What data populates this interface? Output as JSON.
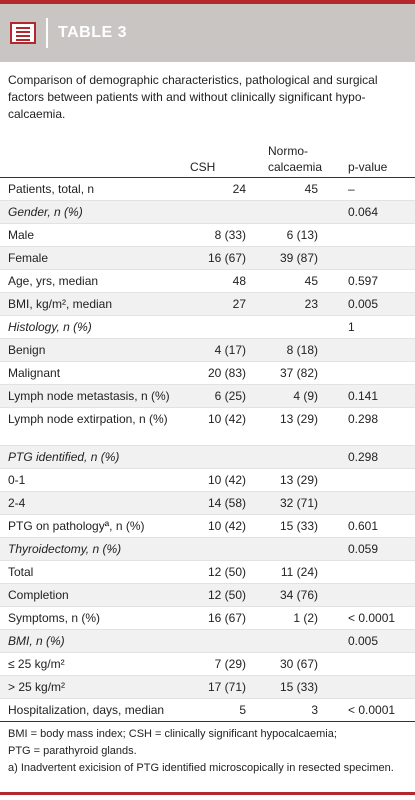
{
  "table_label": "TABLE 3",
  "caption": "Comparison of demographic characteristics, pathological and surgical factors between patients with and without clinically significant hypo­calcaemia.",
  "columns": {
    "label": "",
    "csh": "CSH",
    "normo": "Normo-calcaemia",
    "pvalue": "p-value"
  },
  "rows": [
    {
      "label": "Patients, total, n",
      "csh": "24",
      "normo": "45",
      "p": "–"
    },
    {
      "label": "Gender, n (%)",
      "csh": "",
      "normo": "",
      "p": "0.064",
      "category": true
    },
    {
      "label": "Male",
      "csh": "8 (33)",
      "normo": "6 (13)",
      "p": ""
    },
    {
      "label": "Female",
      "csh": "16 (67)",
      "normo": "39 (87)",
      "p": ""
    },
    {
      "label": "Age, yrs, median",
      "csh": "48",
      "normo": "45",
      "p": "0.597"
    },
    {
      "label": "BMI, kg/m², median",
      "csh": "27",
      "normo": "23",
      "p": "0.005"
    },
    {
      "label": "Histology, n (%)",
      "csh": "",
      "normo": "",
      "p": "1",
      "category": true
    },
    {
      "label": "Benign",
      "csh": "4 (17)",
      "normo": "8 (18)",
      "p": ""
    },
    {
      "label": "Malignant",
      "csh": "20 (83)",
      "normo": "37 (82)",
      "p": ""
    },
    {
      "label": "Lymph node metastasis, n (%)",
      "csh": "6 (25)",
      "normo": "4 (9)",
      "p": "0.141"
    },
    {
      "label": "Lymph node extirpation, n (%)",
      "csh": "10 (42)",
      "normo": "13 (29)",
      "p": "0.298",
      "tall": true
    },
    {
      "label": "PTG identified, n (%)",
      "csh": "",
      "normo": "",
      "p": "0.298",
      "category": true
    },
    {
      "label": "0-1",
      "csh": "10 (42)",
      "normo": "13 (29)",
      "p": ""
    },
    {
      "label": "2-4",
      "csh": "14 (58)",
      "normo": "32 (71)",
      "p": ""
    },
    {
      "label": "PTG on pathologyª, n (%)",
      "csh": "10 (42)",
      "normo": "15 (33)",
      "p": "0.601"
    },
    {
      "label": "Thyroidectomy, n (%)",
      "csh": "",
      "normo": "",
      "p": "0.059",
      "category": true
    },
    {
      "label": "Total",
      "csh": "12 (50)",
      "normo": "11 (24)",
      "p": ""
    },
    {
      "label": "Completion",
      "csh": "12 (50)",
      "normo": "34 (76)",
      "p": ""
    },
    {
      "label": "Symptoms, n (%)",
      "csh": "16 (67)",
      "normo": "1 (2)",
      "p": "< 0.0001"
    },
    {
      "label": "BMI, n (%)",
      "csh": "",
      "normo": "",
      "p": "0.005",
      "category": true
    },
    {
      "label": "≤ 25 kg/m²",
      "csh": "7 (29)",
      "normo": "30 (67)",
      "p": ""
    },
    {
      "label": "> 25 kg/m²",
      "csh": "17 (71)",
      "normo": "15 (33)",
      "p": ""
    },
    {
      "label": "Hospitalization, days, median",
      "csh": "5",
      "normo": "3",
      "p": "< 0.0001"
    }
  ],
  "footnotes": [
    "BMI = body mass index; CSH = clinically significant hypocalcaemia;",
    "PTG = parathyroid glands.",
    "a) Inadvertent exicision of PTG identified microscopically in resected specimen."
  ],
  "colors": {
    "accent": "#b3282d",
    "header_bg": "#c9c5c2",
    "stripe": "#f1f1f1"
  },
  "icons": {
    "table_icon": "table-list-icon"
  }
}
